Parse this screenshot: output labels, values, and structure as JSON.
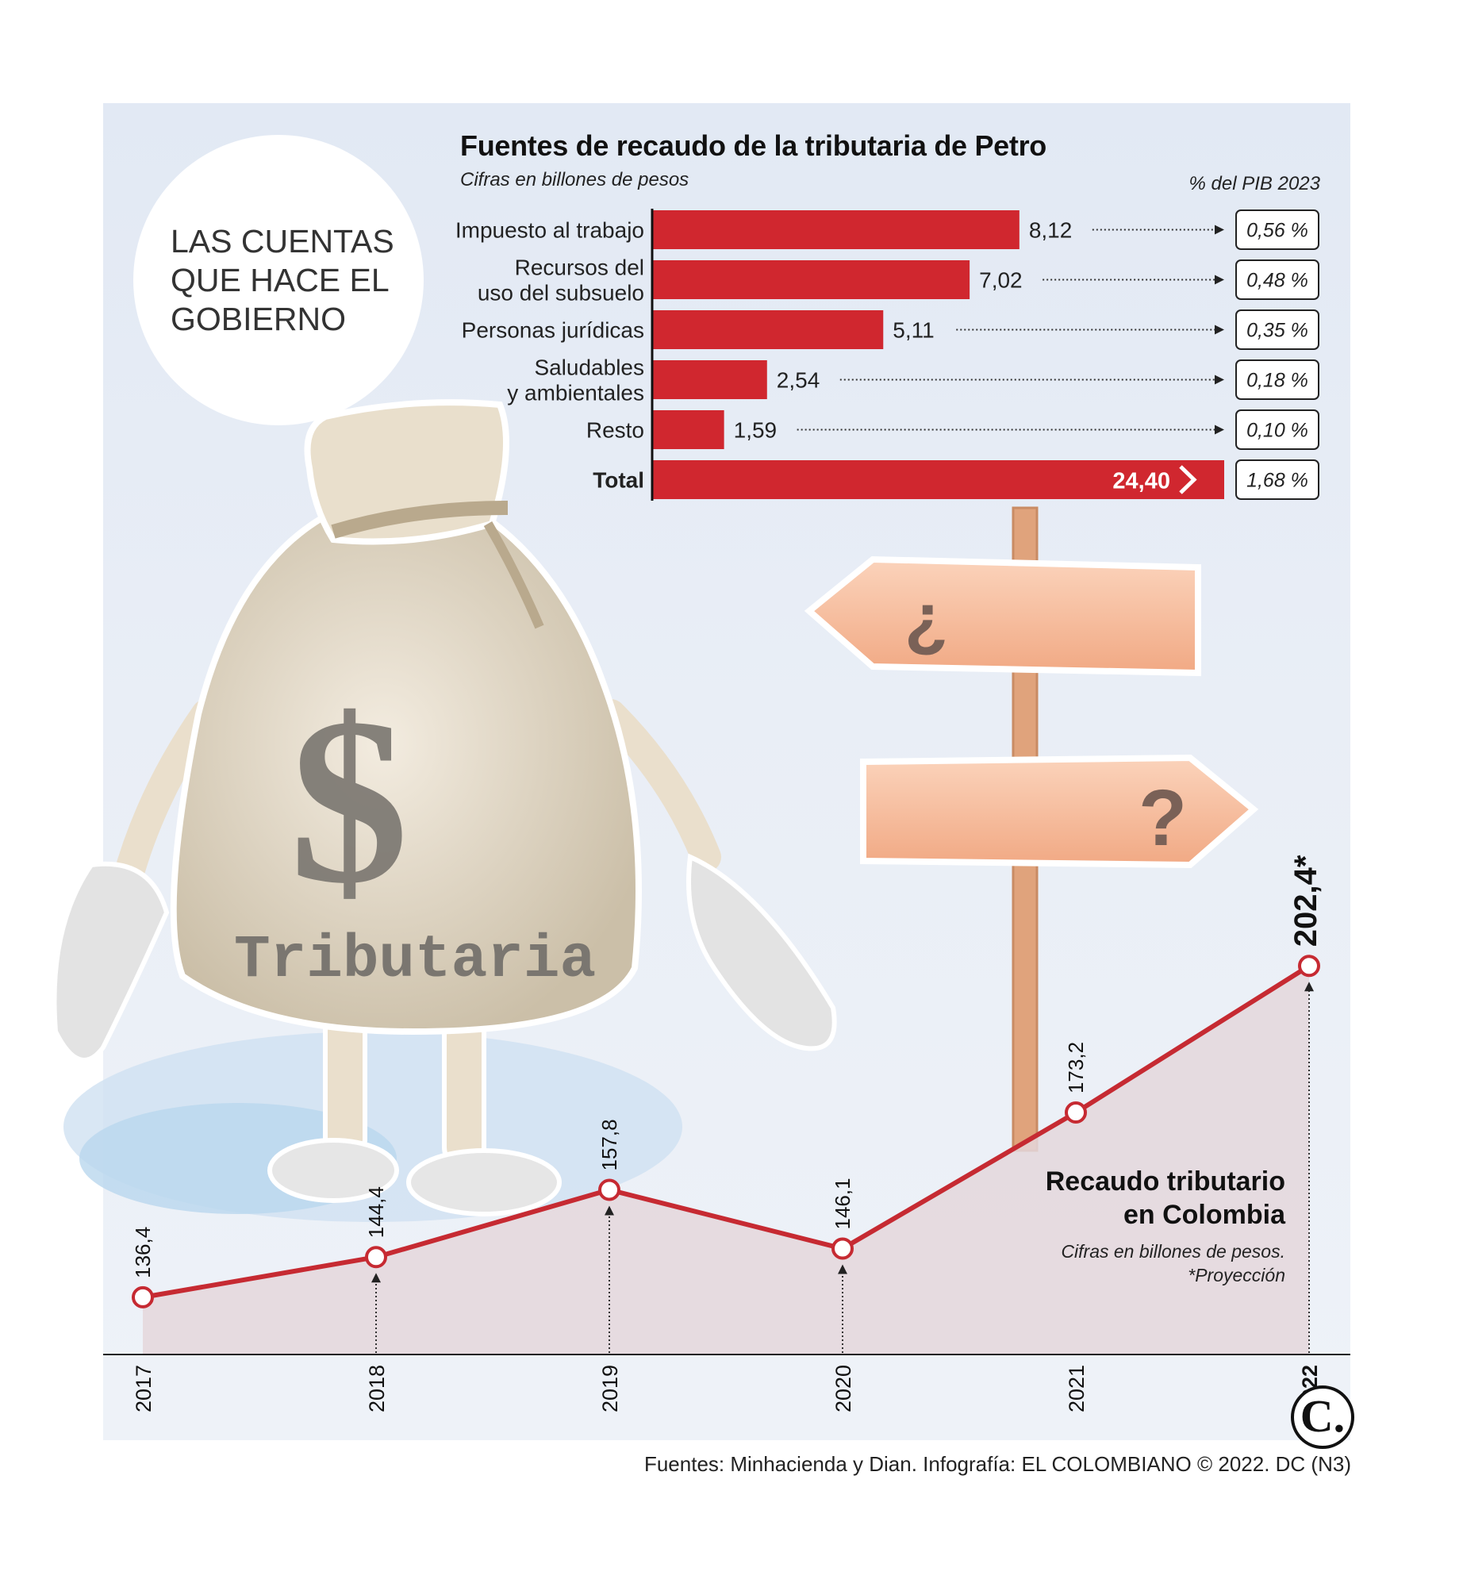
{
  "intro": {
    "text": "LAS CUENTAS\nQUE HACE EL\nGOBIERNO"
  },
  "bar_section": {
    "title": "Fuentes de recaudo de la tributaria de Petro",
    "subtitle": "Cifras en billones de pesos",
    "pib_header": "% del PIB 2023"
  },
  "line_section": {
    "title": "Recaudo tributario\nen Colombia",
    "subtitle": "Cifras en billones de pesos.\n*Proyección"
  },
  "illustration": {
    "bag_label": "Tributaria",
    "bag_symbol": "$",
    "sign_left": "¿",
    "sign_right": "?"
  },
  "source": "Fuentes: Minhacienda y Dian. Infografía: EL COLOMBIANO © 2022. DC (N3)",
  "logo": "C.",
  "colors": {
    "bar": "#d0272f",
    "line": "#c62a32",
    "area": "#e4d7dc",
    "panel": "#e6ecf5"
  },
  "chart_data": [
    {
      "type": "bar",
      "orientation": "horizontal",
      "title": "Fuentes de recaudo de la tributaria de Petro",
      "subtitle": "Cifras en billones de pesos",
      "categories": [
        "Impuesto al trabajo",
        "Recursos del\nuso del subsuelo",
        "Personas jurídicas",
        "Saludables\ny ambientales",
        "Resto",
        "Total"
      ],
      "values": [
        8.12,
        7.02,
        5.11,
        2.54,
        1.59,
        24.4
      ],
      "value_labels": [
        "8,12",
        "7,02",
        "5,11",
        "2,54",
        "1,59",
        "24,40"
      ],
      "pib_header": "% del PIB 2023",
      "pib_labels": [
        "0,56 %",
        "0,48 %",
        "0,35 %",
        "0,18 %",
        "0,10 %",
        "1,68 %"
      ]
    },
    {
      "type": "line",
      "title": "Recaudo tributario\nen Colombia",
      "subtitle": "Cifras en billones de pesos.\n*Proyección",
      "x": [
        "2017",
        "2018",
        "2019",
        "2020",
        "2021",
        "2022"
      ],
      "values": [
        136.4,
        144.4,
        157.8,
        146.1,
        173.2,
        202.4
      ],
      "value_labels": [
        "136,4",
        "144,4",
        "157,8",
        "146,1",
        "173,2",
        "202,4*"
      ],
      "ylim": [
        125,
        232
      ]
    }
  ]
}
